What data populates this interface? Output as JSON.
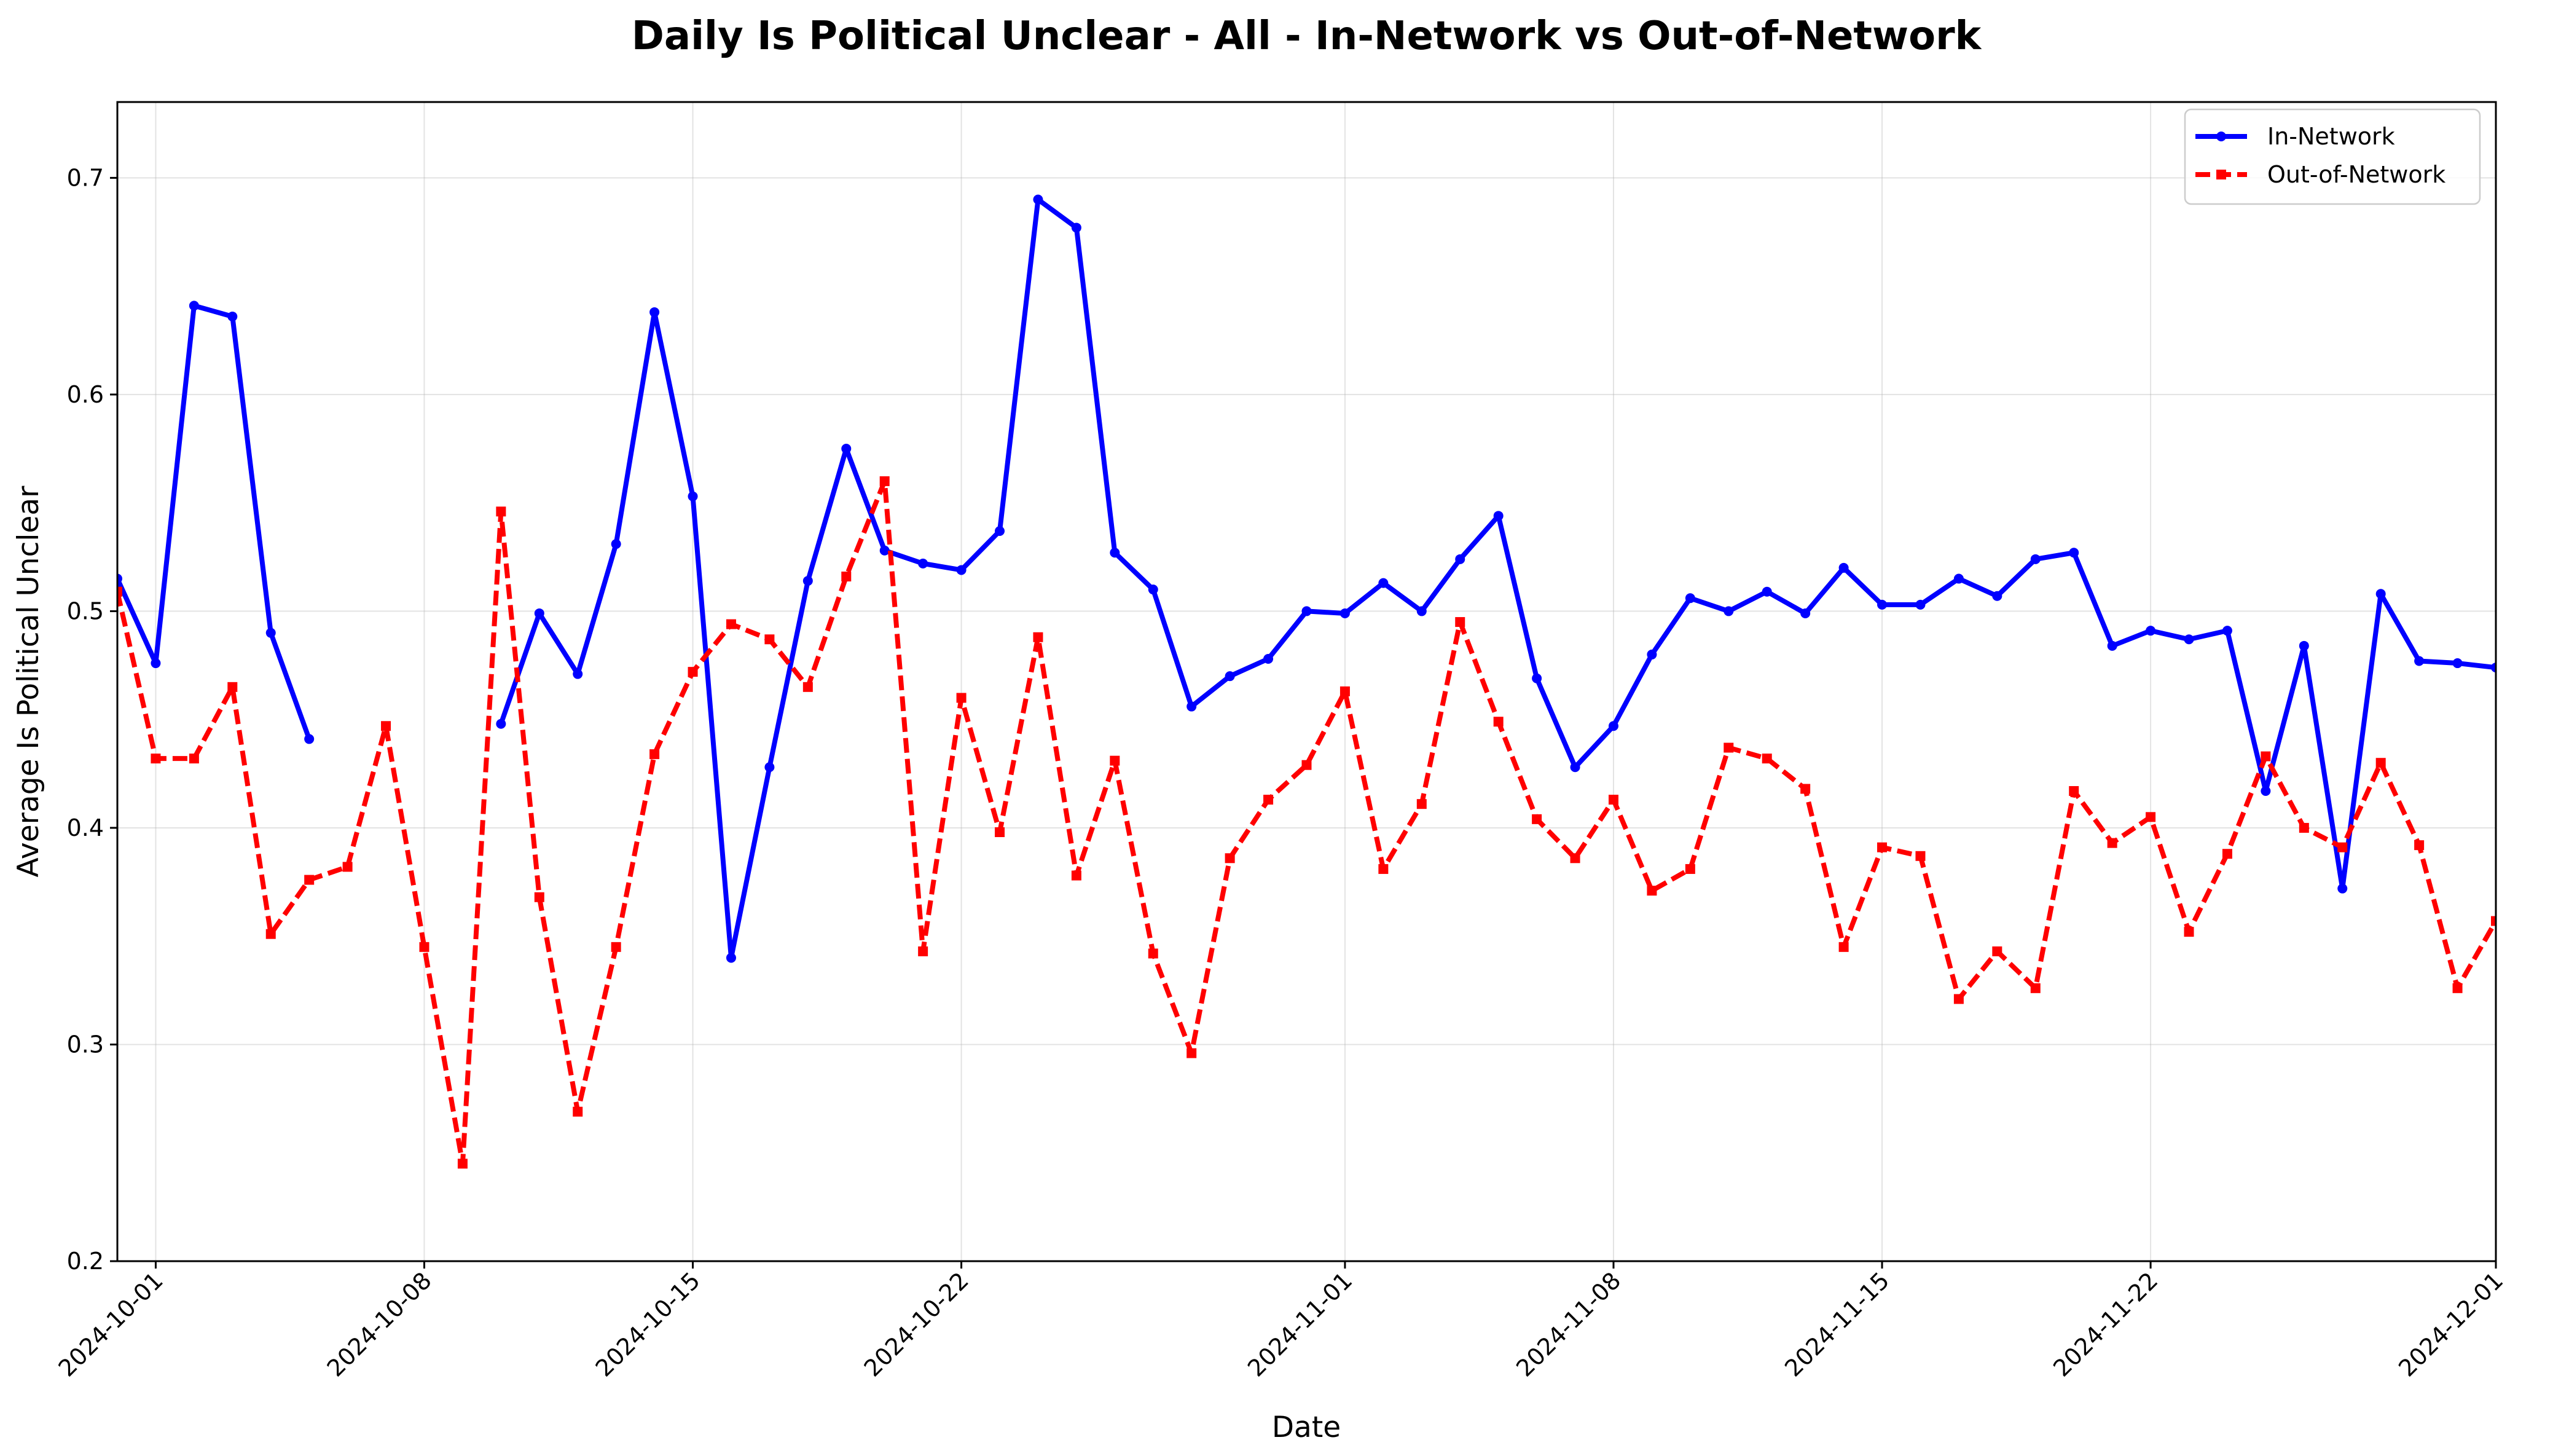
{
  "chart_data": {
    "type": "line",
    "title": "Daily Is Political Unclear - All - In-Network vs Out-of-Network",
    "xlabel": "Date",
    "ylabel": "Average Is Political Unclear",
    "xlim": [
      "2024-09-30",
      "2024-12-01"
    ],
    "ylim": [
      0.2,
      0.735
    ],
    "x_ticks": [
      "2024-10-01",
      "2024-10-08",
      "2024-10-15",
      "2024-10-22",
      "2024-11-01",
      "2024-11-08",
      "2024-11-15",
      "2024-11-22",
      "2024-12-01"
    ],
    "y_ticks": [
      "0.2",
      "0.3",
      "0.4",
      "0.5",
      "0.6",
      "0.7"
    ],
    "grid": true,
    "legend_position": "top-right",
    "series": [
      {
        "name": "In-Network",
        "color": "#0000ff",
        "line_style": "solid",
        "marker": "circle",
        "points": [
          [
            "2024-09-30",
            0.515
          ],
          [
            "2024-10-01",
            0.476
          ],
          [
            "2024-10-02",
            0.641
          ],
          [
            "2024-10-03",
            0.636
          ],
          [
            "2024-10-04",
            0.49
          ],
          [
            "2024-10-05",
            0.441
          ],
          [
            "2024-10-06",
            null
          ],
          [
            "2024-10-07",
            null
          ],
          [
            "2024-10-08",
            null
          ],
          [
            "2024-10-09",
            null
          ],
          [
            "2024-10-10",
            0.448
          ],
          [
            "2024-10-11",
            0.499
          ],
          [
            "2024-10-12",
            0.471
          ],
          [
            "2024-10-13",
            0.531
          ],
          [
            "2024-10-14",
            0.638
          ],
          [
            "2024-10-15",
            0.553
          ],
          [
            "2024-10-16",
            0.34
          ],
          [
            "2024-10-17",
            0.428
          ],
          [
            "2024-10-18",
            0.514
          ],
          [
            "2024-10-19",
            0.575
          ],
          [
            "2024-10-20",
            0.528
          ],
          [
            "2024-10-21",
            0.522
          ],
          [
            "2024-10-22",
            0.519
          ],
          [
            "2024-10-23",
            0.537
          ],
          [
            "2024-10-24",
            0.69
          ],
          [
            "2024-10-25",
            0.677
          ],
          [
            "2024-10-26",
            0.527
          ],
          [
            "2024-10-27",
            0.51
          ],
          [
            "2024-10-28",
            0.456
          ],
          [
            "2024-10-29",
            0.47
          ],
          [
            "2024-10-30",
            0.478
          ],
          [
            "2024-10-31",
            0.5
          ],
          [
            "2024-11-01",
            0.499
          ],
          [
            "2024-11-02",
            0.513
          ],
          [
            "2024-11-03",
            0.5
          ],
          [
            "2024-11-04",
            0.524
          ],
          [
            "2024-11-05",
            0.544
          ],
          [
            "2024-11-06",
            0.469
          ],
          [
            "2024-11-07",
            0.428
          ],
          [
            "2024-11-08",
            0.447
          ],
          [
            "2024-11-09",
            0.48
          ],
          [
            "2024-11-10",
            0.506
          ],
          [
            "2024-11-11",
            0.5
          ],
          [
            "2024-11-12",
            0.509
          ],
          [
            "2024-11-13",
            0.499
          ],
          [
            "2024-11-14",
            0.52
          ],
          [
            "2024-11-15",
            0.503
          ],
          [
            "2024-11-16",
            0.503
          ],
          [
            "2024-11-17",
            0.515
          ],
          [
            "2024-11-18",
            0.507
          ],
          [
            "2024-11-19",
            0.524
          ],
          [
            "2024-11-20",
            0.527
          ],
          [
            "2024-11-21",
            0.484
          ],
          [
            "2024-11-22",
            0.491
          ],
          [
            "2024-11-23",
            0.487
          ],
          [
            "2024-11-24",
            0.491
          ],
          [
            "2024-11-25",
            0.417
          ],
          [
            "2024-11-26",
            0.484
          ],
          [
            "2024-11-27",
            0.372
          ],
          [
            "2024-11-28",
            0.508
          ],
          [
            "2024-11-29",
            0.477
          ],
          [
            "2024-11-30",
            0.476
          ],
          [
            "2024-12-01",
            0.474
          ]
        ]
      },
      {
        "name": "Out-of-Network",
        "color": "#ff0000",
        "line_style": "dashed",
        "marker": "square",
        "points": [
          [
            "2024-09-30",
            0.509
          ],
          [
            "2024-10-01",
            0.432
          ],
          [
            "2024-10-02",
            0.432
          ],
          [
            "2024-10-03",
            0.465
          ],
          [
            "2024-10-04",
            0.351
          ],
          [
            "2024-10-05",
            0.376
          ],
          [
            "2024-10-06",
            0.382
          ],
          [
            "2024-10-07",
            0.447
          ],
          [
            "2024-10-08",
            0.345
          ],
          [
            "2024-10-09",
            0.245
          ],
          [
            "2024-10-10",
            0.546
          ],
          [
            "2024-10-11",
            0.368
          ],
          [
            "2024-10-12",
            0.269
          ],
          [
            "2024-10-13",
            0.345
          ],
          [
            "2024-10-14",
            0.434
          ],
          [
            "2024-10-15",
            0.472
          ],
          [
            "2024-10-16",
            0.494
          ],
          [
            "2024-10-17",
            0.487
          ],
          [
            "2024-10-18",
            0.465
          ],
          [
            "2024-10-19",
            0.516
          ],
          [
            "2024-10-20",
            0.56
          ],
          [
            "2024-10-21",
            0.343
          ],
          [
            "2024-10-22",
            0.46
          ],
          [
            "2024-10-23",
            0.398
          ],
          [
            "2024-10-24",
            0.488
          ],
          [
            "2024-10-25",
            0.378
          ],
          [
            "2024-10-26",
            0.431
          ],
          [
            "2024-10-27",
            0.342
          ],
          [
            "2024-10-28",
            0.296
          ],
          [
            "2024-10-29",
            0.386
          ],
          [
            "2024-10-30",
            0.413
          ],
          [
            "2024-10-31",
            0.429
          ],
          [
            "2024-11-01",
            0.463
          ],
          [
            "2024-11-02",
            0.381
          ],
          [
            "2024-11-03",
            0.411
          ],
          [
            "2024-11-04",
            0.495
          ],
          [
            "2024-11-05",
            0.449
          ],
          [
            "2024-11-06",
            0.404
          ],
          [
            "2024-11-07",
            0.386
          ],
          [
            "2024-11-08",
            0.413
          ],
          [
            "2024-11-09",
            0.371
          ],
          [
            "2024-11-10",
            0.381
          ],
          [
            "2024-11-11",
            0.437
          ],
          [
            "2024-11-12",
            0.432
          ],
          [
            "2024-11-13",
            0.418
          ],
          [
            "2024-11-14",
            0.345
          ],
          [
            "2024-11-15",
            0.391
          ],
          [
            "2024-11-16",
            0.387
          ],
          [
            "2024-11-17",
            0.321
          ],
          [
            "2024-11-18",
            0.343
          ],
          [
            "2024-11-19",
            0.326
          ],
          [
            "2024-11-20",
            0.417
          ],
          [
            "2024-11-21",
            0.393
          ],
          [
            "2024-11-22",
            0.405
          ],
          [
            "2024-11-23",
            0.352
          ],
          [
            "2024-11-24",
            0.388
          ],
          [
            "2024-11-25",
            0.433
          ],
          [
            "2024-11-26",
            0.4
          ],
          [
            "2024-11-27",
            0.391
          ],
          [
            "2024-11-28",
            0.43
          ],
          [
            "2024-11-29",
            0.392
          ],
          [
            "2024-11-30",
            0.326
          ],
          [
            "2024-12-01",
            0.357
          ]
        ]
      }
    ]
  }
}
